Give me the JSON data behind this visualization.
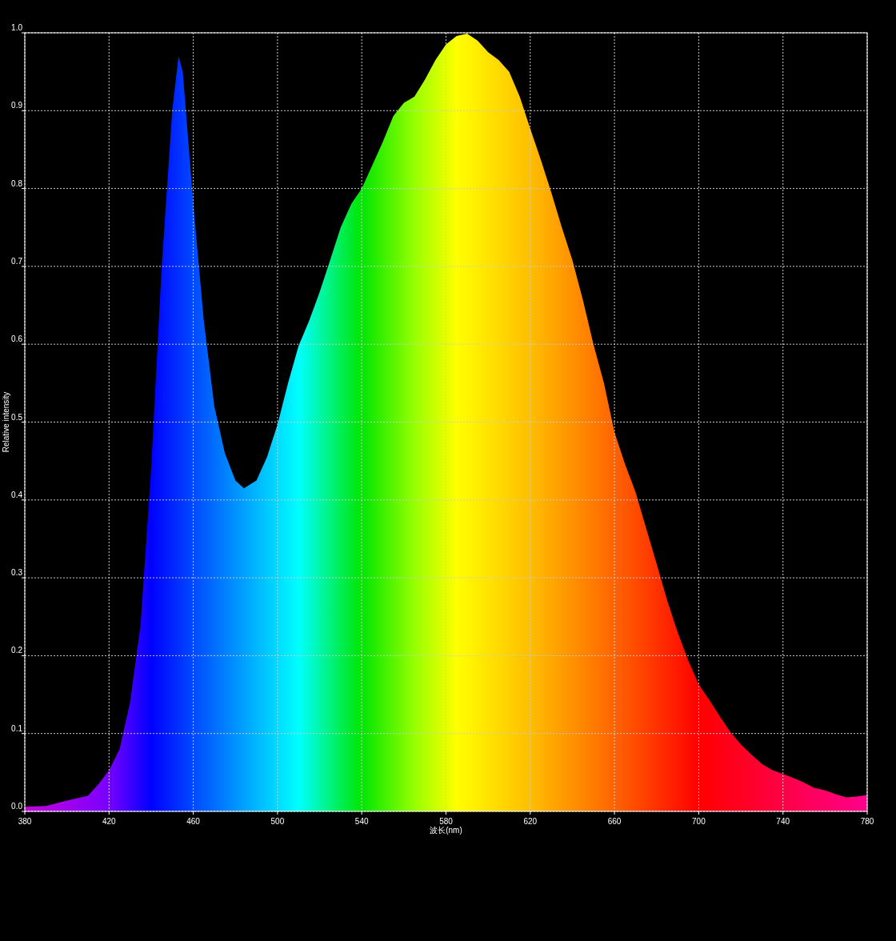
{
  "chart_data": {
    "type": "area",
    "xlabel": "波长(nm)",
    "ylabel": "Relative intensity",
    "x": [
      380,
      390,
      400,
      410,
      415,
      420,
      425,
      430,
      435,
      440,
      445,
      450,
      453,
      455,
      460,
      465,
      470,
      475,
      480,
      484,
      490,
      495,
      500,
      505,
      510,
      515,
      520,
      525,
      530,
      535,
      540,
      545,
      550,
      555,
      560,
      565,
      570,
      575,
      580,
      585,
      590,
      595,
      600,
      605,
      610,
      615,
      620,
      625,
      630,
      635,
      640,
      645,
      650,
      655,
      660,
      665,
      670,
      675,
      680,
      685,
      690,
      695,
      700,
      705,
      710,
      715,
      720,
      725,
      730,
      735,
      740,
      745,
      750,
      755,
      760,
      765,
      770,
      775,
      780
    ],
    "values": [
      0.006,
      0.007,
      0.014,
      0.02,
      0.035,
      0.053,
      0.08,
      0.14,
      0.24,
      0.44,
      0.7,
      0.9,
      0.97,
      0.95,
      0.78,
      0.63,
      0.52,
      0.46,
      0.425,
      0.415,
      0.425,
      0.455,
      0.497,
      0.55,
      0.598,
      0.63,
      0.667,
      0.708,
      0.75,
      0.78,
      0.8,
      0.83,
      0.86,
      0.893,
      0.91,
      0.918,
      0.94,
      0.965,
      0.985,
      0.996,
      0.999,
      0.99,
      0.975,
      0.965,
      0.95,
      0.918,
      0.877,
      0.837,
      0.795,
      0.75,
      0.708,
      0.657,
      0.6,
      0.55,
      0.487,
      0.446,
      0.41,
      0.364,
      0.318,
      0.271,
      0.23,
      0.194,
      0.163,
      0.143,
      0.122,
      0.102,
      0.086,
      0.073,
      0.061,
      0.053,
      0.048,
      0.043,
      0.037,
      0.03,
      0.027,
      0.022,
      0.018,
      0.019,
      0.021
    ],
    "xlim": [
      380,
      780
    ],
    "ylim": [
      0,
      1
    ],
    "xticks": [
      380,
      420,
      460,
      500,
      540,
      580,
      620,
      660,
      700,
      740,
      780
    ],
    "yticks": [
      {
        "value": 0,
        "label": "0.0"
      },
      0.1,
      0.2,
      0.3,
      0.4,
      0.5,
      0.6,
      0.7,
      0.8,
      0.9,
      {
        "value": 1,
        "label": "1.0"
      }
    ],
    "grid": true
  }
}
